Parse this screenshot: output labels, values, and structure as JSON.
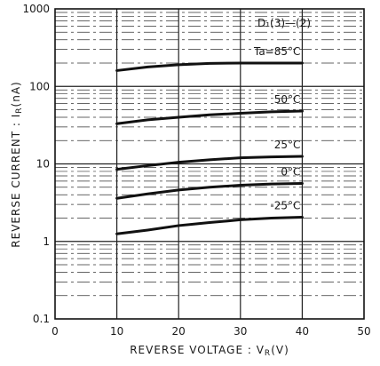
{
  "chart_data": {
    "type": "line",
    "xlabel": "REVERSE VOLTAGE : V",
    "xlabel_sub": "R",
    "xlabel_unit": "(V)",
    "ylabel": "REVERSE CURRENT : I",
    "ylabel_sub": "R",
    "ylabel_unit": "(nA)",
    "xlim": [
      0,
      50
    ],
    "ylim": [
      0.1,
      1000
    ],
    "yscale": "log",
    "grid": true,
    "x_ticks": [
      "0",
      "10",
      "20",
      "30",
      "40",
      "50"
    ],
    "y_ticks": [
      "0.1",
      "1",
      "10",
      "100",
      "1000"
    ],
    "annotation_top_right": "D₁(3)—(2)",
    "series": [
      {
        "name": "Ta=85°C",
        "x": [
          10,
          15,
          20,
          25,
          30,
          35,
          40
        ],
        "values": [
          160,
          178,
          190,
          198,
          200,
          200,
          200
        ]
      },
      {
        "name": "50°C",
        "x": [
          10,
          15,
          20,
          25,
          30,
          35,
          40
        ],
        "values": [
          33,
          37,
          40,
          43,
          45,
          47,
          48
        ]
      },
      {
        "name": "25°C",
        "x": [
          10,
          15,
          20,
          25,
          30,
          35,
          40
        ],
        "values": [
          8.5,
          9.5,
          10.5,
          11.3,
          12,
          12.3,
          12.5
        ]
      },
      {
        "name": "0°C",
        "x": [
          10,
          15,
          20,
          25,
          30,
          35,
          40
        ],
        "values": [
          3.6,
          4.1,
          4.6,
          5.0,
          5.3,
          5.5,
          5.6
        ]
      },
      {
        "name": "-25°C",
        "x": [
          10,
          15,
          20,
          25,
          30,
          35,
          40
        ],
        "values": [
          1.25,
          1.4,
          1.6,
          1.75,
          1.9,
          2.0,
          2.05
        ]
      }
    ]
  }
}
